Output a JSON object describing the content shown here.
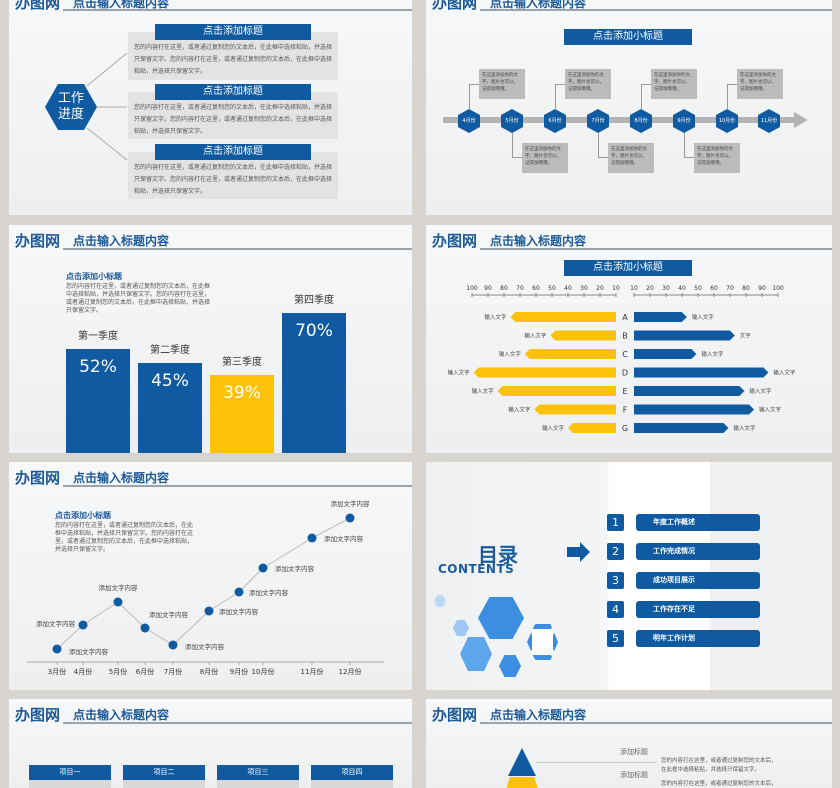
{
  "header": {
    "logo": "办图网",
    "title": "点击输入标题内容"
  },
  "slide1": {
    "hex_label_1": "工作",
    "hex_label_2": "进度",
    "items": [
      {
        "title": "点击添加标题",
        "text": "您的内容打在这里，或者通过复制您的文本后，在此框中选择粘贴，并选择只保留文字。您的内容打在这里，或者通过复制您的文本后，在此框中选择粘贴，并选择只保留文字。"
      },
      {
        "title": "点击添加标题",
        "text": "您的内容打在这里，或者通过复制您的文本后，在此框中选择粘贴，并选择只保留文字。您的内容打在这里，或者通过复制您的文本后，在此框中选择粘贴，并选择只保留文字。"
      },
      {
        "title": "点击添加标题",
        "text": "您的内容打在这里，或者通过复制您的文本后，在此框中选择粘贴，并选择只保留文字。您的内容打在这里，或者通过复制您的文本后，在此框中选择粘贴，并选择只保留文字。"
      }
    ]
  },
  "slide2": {
    "subtitle": "点击添加小标题",
    "months": [
      "4月份",
      "5月份",
      "6月份",
      "7月份",
      "8月份",
      "9月份",
      "10月份",
      "11月份"
    ],
    "callout": "在这里添加你的文字，图片也可以，记得加哦哦。"
  },
  "slide3": {
    "subtitle": "点击添加小标题",
    "text": "您的内容打在这里，或者通过复制您的文本后，在此框中选择粘贴，并选择只保留文字。您的内容打在这里，或者通过复制您的文本后，在此框中选择粘贴，并选择只保留文字。",
    "chart_data": {
      "type": "bar",
      "categories": [
        "第一季度",
        "第二季度",
        "第三季度",
        "第四季度"
      ],
      "values": [
        52,
        45,
        39,
        70
      ],
      "labels": [
        "52%",
        "45%",
        "39%",
        "70%"
      ],
      "colors": [
        "#0f5aa0",
        "#0f5aa0",
        "#fcc20a",
        "#0f5aa0"
      ]
    }
  },
  "slide4": {
    "subtitle": "点击添加小标题",
    "chart_data": {
      "type": "bar",
      "orientation": "horizontal-diverging",
      "categories": [
        "A",
        "B",
        "C",
        "D",
        "E",
        "F",
        "G"
      ],
      "left_ticks": [
        "100",
        "90",
        "80",
        "70",
        "60",
        "50",
        "40",
        "30",
        "20",
        "10"
      ],
      "right_ticks": [
        "10",
        "20",
        "30",
        "40",
        "50",
        "60",
        "70",
        "80",
        "90",
        "100"
      ],
      "series": [
        {
          "color": "#fcc20a",
          "values": [
            76,
            51,
            67,
            99,
            84,
            61,
            40
          ],
          "labels": [
            "输入文字",
            "输入文字",
            "输入文字",
            "输入文字",
            "输入文字",
            "输入文字",
            "输入文字"
          ]
        },
        {
          "color": "#0f5aa0",
          "values": [
            43,
            73,
            49,
            94,
            79,
            85,
            69
          ],
          "labels": [
            "输入文字",
            "文字",
            "输入文字",
            "输入文字",
            "输入文字",
            "输入文字",
            "输入文字"
          ]
        }
      ]
    }
  },
  "slide5": {
    "subtitle": "点击添加小标题",
    "text": "您的内容打在这里，或者通过复制您的文本后，在此框中选择粘贴，并选择只保留文字。您的内容打在这里，或者通过复制您的文本后，在此框中选择粘贴，并选择只保留文字。",
    "chart_data": {
      "type": "line",
      "categories": [
        "3月份",
        "4月份",
        "5月份",
        "6月份",
        "7月份",
        "8月份",
        "9月份",
        "10月份",
        "11月份",
        "12月份"
      ],
      "values": [
        13,
        37,
        60,
        34,
        17,
        51,
        70,
        94,
        124,
        144
      ],
      "point_label": "添加文字内容"
    }
  },
  "slide6": {
    "title_cn": "目录",
    "title_en": "CONTENTS",
    "items": [
      {
        "num": "1",
        "label": "年度工作概述"
      },
      {
        "num": "2",
        "label": "工作完成情况"
      },
      {
        "num": "3",
        "label": "成功项目展示"
      },
      {
        "num": "4",
        "label": "工作存在不足"
      },
      {
        "num": "5",
        "label": "明年工作计划"
      }
    ]
  },
  "slide7": {
    "columns": [
      "项目一",
      "项目二",
      "项目三",
      "项目四"
    ]
  },
  "slide8": {
    "items": [
      {
        "title": "添加标题",
        "text1": "您的内容打在这里，或者通过复制您的文本后，",
        "text2": "在此框中选择粘贴，并选择只保留文字。"
      },
      {
        "title": "添加标题",
        "text1": "您的内容打在这里，或者通过复制您的文本后，"
      }
    ]
  },
  "colors": {
    "blue": "#0f5aa0",
    "yellow": "#fcc20a",
    "gray": "#e3e3e3"
  }
}
